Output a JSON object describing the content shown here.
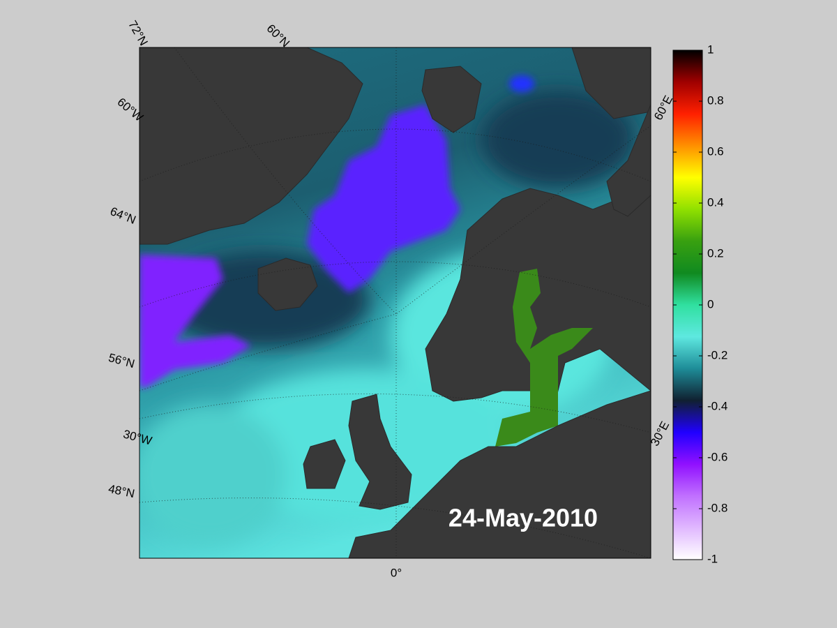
{
  "map": {
    "lat_labels": [
      "72°N",
      "60°N",
      "64°N",
      "56°N",
      "48°N"
    ],
    "lon_labels": [
      "60°W",
      "30°W",
      "0°",
      "60°E",
      "30°E"
    ],
    "date": "24-May-2010"
  },
  "colorbar": {
    "lim": [
      -1,
      1
    ],
    "ticks": [
      1,
      0.8,
      0.6,
      0.4,
      0.2,
      0,
      -0.2,
      -0.4,
      -0.6,
      -0.8,
      -1
    ],
    "colormap": [
      "#ffffff",
      "#e0b8ff",
      "#c070ff",
      "#9010ff",
      "#2000ff",
      "#102030",
      "#1e8c98",
      "#5ee8e0",
      "#30e0a0",
      "#108a20",
      "#38a010",
      "#90e000",
      "#ffff00",
      "#ff9000",
      "#ff2000",
      "#a00000",
      "#000000"
    ]
  }
}
